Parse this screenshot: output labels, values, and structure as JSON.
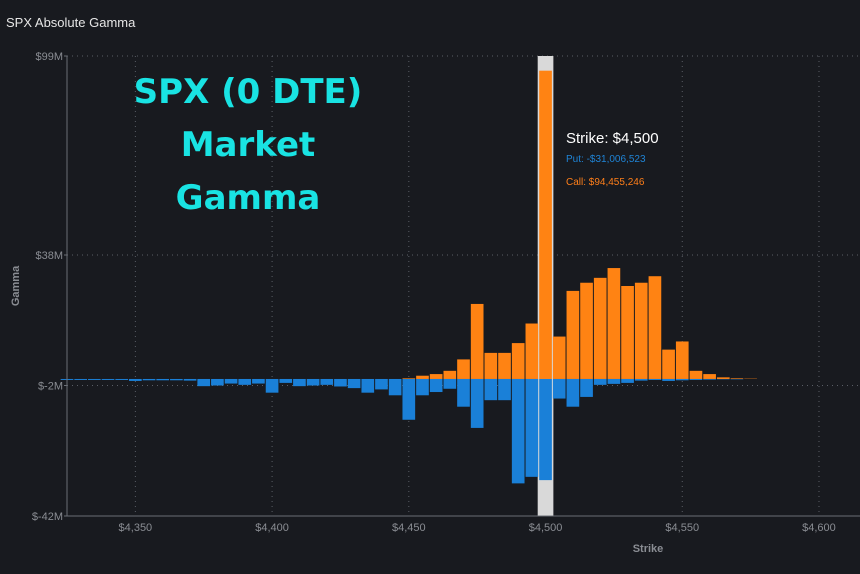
{
  "page": {
    "title": "SPX Absolute Gamma"
  },
  "overlay": {
    "line1": "SPX (0 DTE)",
    "line2": "Market",
    "line3": "Gamma"
  },
  "tooltip": {
    "strike": "Strike: $4,500",
    "put": "Put: -$31,006,523",
    "call": "Call: $94,455,246"
  },
  "colors": {
    "call": "#ff8313",
    "put": "#1a80d8",
    "highlight": "#d9d9d9",
    "text": "#8a8d93",
    "overlay": "#19e3e3"
  },
  "chart_data": {
    "type": "bar",
    "stacked": "diverging",
    "title": "SPX Absolute Gamma",
    "xlabel": "Strike",
    "ylabel": "Gamma",
    "xlim": [
      4325,
      4615
    ],
    "ylim": [
      -42,
      99
    ],
    "value_unit": "M",
    "x_ticks": [
      4350,
      4400,
      4450,
      4500,
      4550,
      4600
    ],
    "x_tick_labels": [
      "$4,350",
      "$4,400",
      "$4,450",
      "$4,500",
      "$4,550",
      "$4,600"
    ],
    "y_ticks": [
      99,
      38,
      -2,
      -42
    ],
    "y_tick_labels": [
      "$99M",
      "$38M",
      "$-2M",
      "$-42M"
    ],
    "highlighted_strike": 4500,
    "grid": true,
    "categories": [
      4325,
      4330,
      4335,
      4340,
      4345,
      4350,
      4355,
      4360,
      4365,
      4370,
      4375,
      4380,
      4385,
      4390,
      4395,
      4400,
      4405,
      4410,
      4415,
      4420,
      4425,
      4430,
      4435,
      4440,
      4445,
      4450,
      4455,
      4460,
      4465,
      4470,
      4475,
      4480,
      4485,
      4490,
      4495,
      4500,
      4505,
      4510,
      4515,
      4520,
      4525,
      4530,
      4535,
      4540,
      4545,
      4550,
      4555,
      4560,
      4565,
      4570,
      4575,
      4580,
      4585,
      4590,
      4595,
      4600,
      4605,
      4610
    ],
    "series": [
      {
        "name": "Call",
        "values": [
          0,
          0,
          0,
          0,
          0,
          0,
          0,
          0,
          0,
          0,
          0,
          0,
          0,
          0,
          0,
          0,
          0,
          0,
          0,
          0,
          0,
          0,
          0,
          0,
          0,
          0.2,
          1.0,
          1.5,
          2.5,
          6.0,
          23.0,
          8.0,
          8.0,
          11.0,
          17.0,
          94.5,
          13.0,
          27.0,
          29.5,
          31.0,
          34.0,
          28.5,
          29.5,
          31.5,
          9.0,
          11.5,
          2.5,
          1.5,
          0.5,
          0.2,
          0.1,
          0,
          0,
          0,
          0,
          0,
          0,
          0
        ]
      },
      {
        "name": "Put",
        "values": [
          -0.3,
          -0.3,
          -0.3,
          -0.3,
          -0.3,
          -0.6,
          -0.4,
          -0.4,
          -0.4,
          -0.5,
          -2.2,
          -2.0,
          -1.4,
          -1.8,
          -1.4,
          -4.2,
          -1.2,
          -2.2,
          -2.0,
          -1.8,
          -2.3,
          -2.8,
          -4.2,
          -3.2,
          -5.0,
          -12.5,
          -5.0,
          -4.0,
          -3.0,
          -8.5,
          -15.0,
          -6.5,
          -6.5,
          -32.0,
          -30.0,
          -31.0,
          -6.0,
          -8.5,
          -5.5,
          -1.8,
          -1.5,
          -1.2,
          -0.5,
          -0.3,
          -0.6,
          -0.4,
          -0.3,
          -0.2,
          -0.1,
          -0.1,
          0,
          0,
          0,
          0,
          0,
          0,
          0,
          0
        ]
      }
    ]
  }
}
